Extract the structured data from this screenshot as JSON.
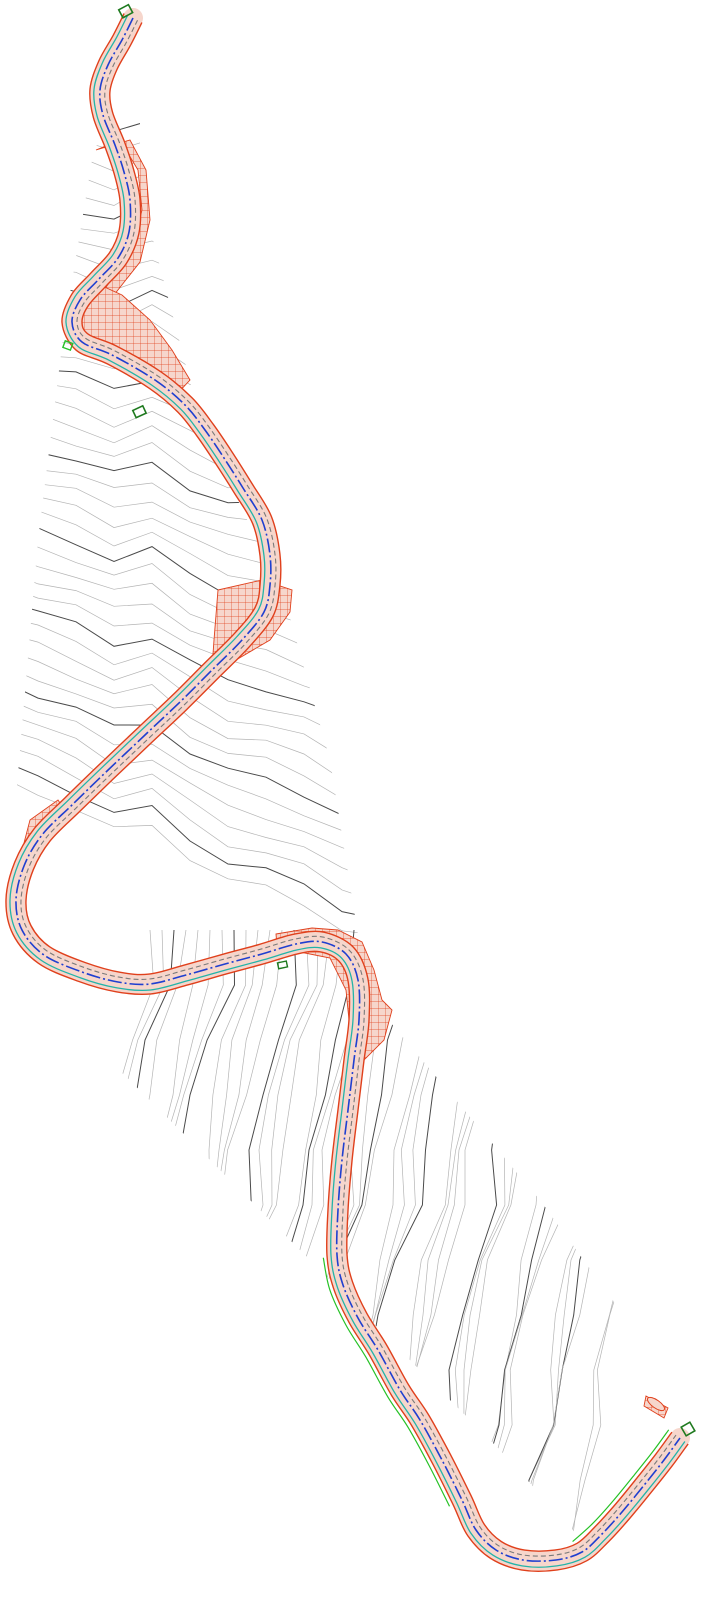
{
  "drawing": {
    "kind": "road-alignment-plan-over-contours",
    "colors": {
      "background": "#ffffff",
      "contour_minor": "#b4b4b4",
      "contour_major": "#4a4a4a",
      "road_edge": "#e0401c",
      "earthwork_hatch": "#e0401c",
      "earthwork_fill": "#f6d6cc",
      "centerline": "#1f3fd0",
      "lane_stripe": "#7a7a7a",
      "shoulder": "#23b4a8",
      "drainage": "#27c227",
      "marker": "#1f7a1f"
    },
    "icons": [
      "start-marker-icon",
      "end-marker-icon",
      "station-marker-icon",
      "culvert-marker-icon",
      "sign-marker-icon"
    ]
  }
}
